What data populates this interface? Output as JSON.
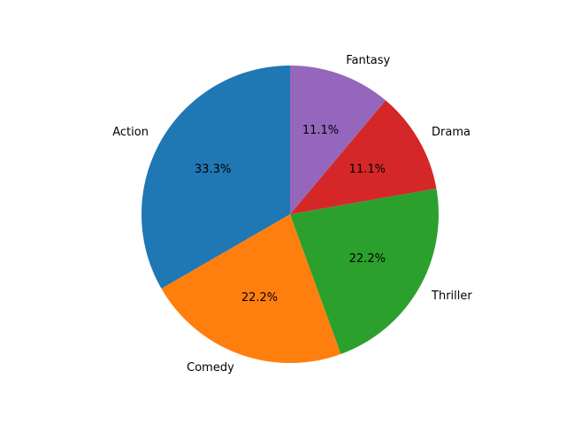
{
  "chart_data": {
    "type": "pie",
    "title": "",
    "start_angle_deg": 90,
    "direction": "counterclockwise",
    "slices": [
      {
        "label": "Action",
        "value": 3,
        "percent_label": "33.3%",
        "color": "#1f77b4"
      },
      {
        "label": "Comedy",
        "value": 2,
        "percent_label": "22.2%",
        "color": "#ff7f0e"
      },
      {
        "label": "Thriller",
        "value": 2,
        "percent_label": "22.2%",
        "color": "#2ca02c"
      },
      {
        "label": "Drama",
        "value": 1,
        "percent_label": "11.1%",
        "color": "#d62728"
      },
      {
        "label": "Fantasy",
        "value": 1,
        "percent_label": "11.1%",
        "color": "#9467bd"
      }
    ]
  }
}
